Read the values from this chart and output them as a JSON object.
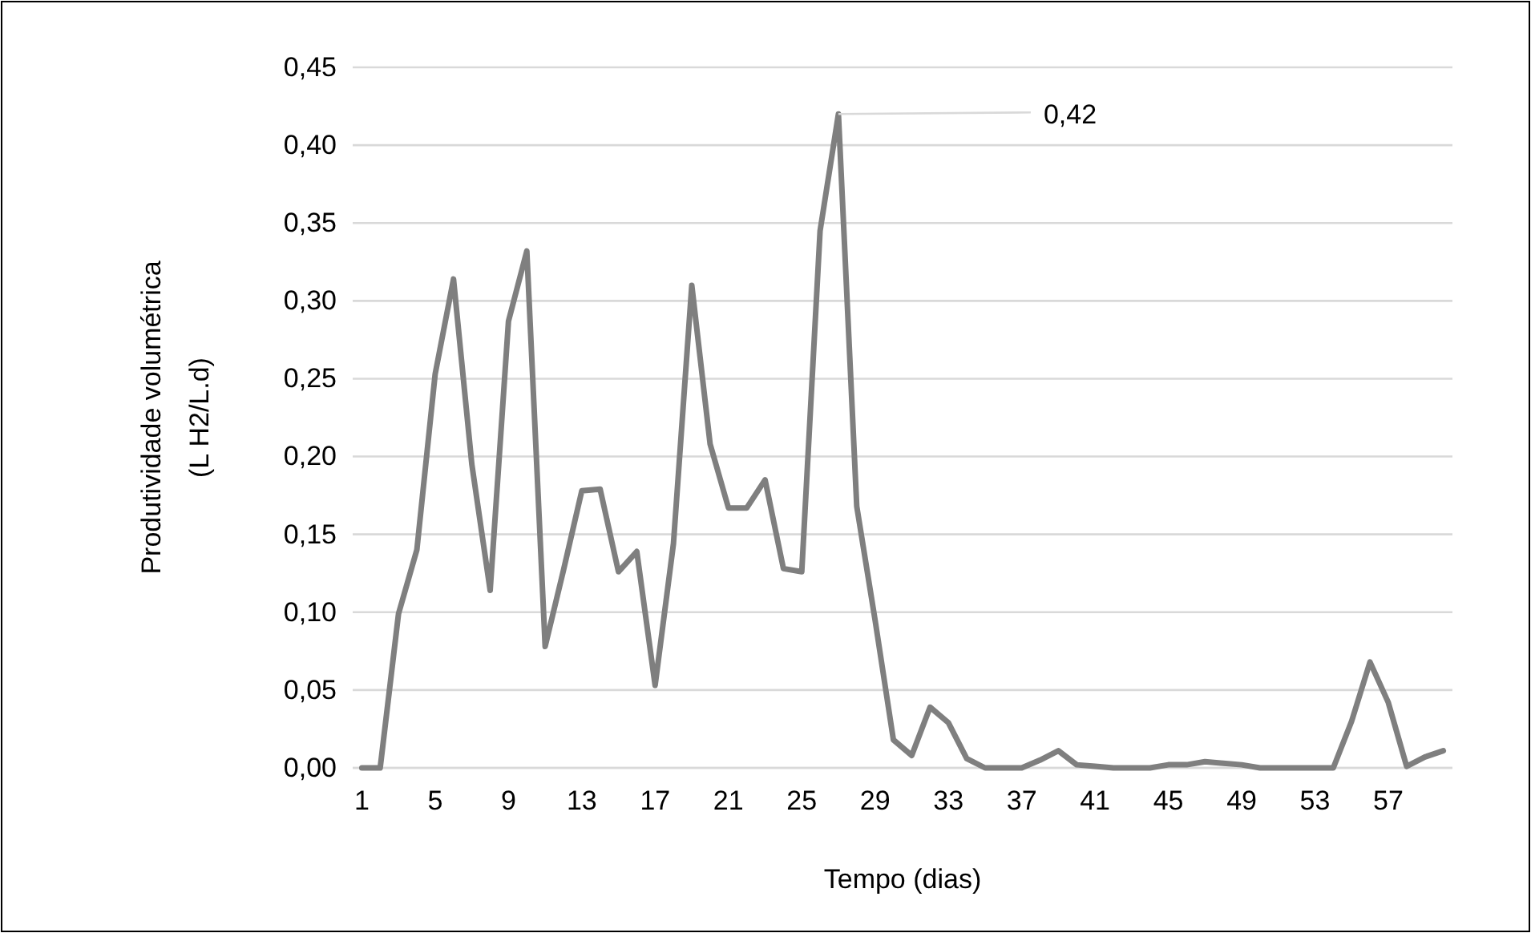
{
  "chart_data": {
    "type": "line",
    "xlabel": "Tempo (dias)",
    "ylabel": "Produtividade volumétrica\n(L H2/L.d)",
    "categories": [
      "1",
      null,
      null,
      null,
      "5",
      null,
      null,
      null,
      "9",
      null,
      null,
      null,
      "13",
      null,
      null,
      null,
      "17",
      null,
      null,
      null,
      "21",
      null,
      null,
      null,
      "25",
      null,
      null,
      null,
      "29",
      null,
      null,
      null,
      "33",
      null,
      null,
      null,
      "37",
      null,
      null,
      null,
      "41",
      null,
      null,
      null,
      "45",
      null,
      null,
      null,
      "49",
      null,
      null,
      null,
      "53",
      null,
      null,
      null,
      "57",
      null,
      null,
      null
    ],
    "series": [
      {
        "color": "#7f7f7f",
        "values": [
          0,
          0,
          0.099,
          0.14,
          0.253,
          0.314,
          0.195,
          0.114,
          0.287,
          0.332,
          0.078,
          0.127,
          0.178,
          0.179,
          0.126,
          0.139,
          0.053,
          0.144,
          0.31,
          0.208,
          0.167,
          0.167,
          0.185,
          0.128,
          0.126,
          0.345,
          0.42,
          0.168,
          0.095,
          0.018,
          0.008,
          0.039,
          0.029,
          0.006,
          0,
          0,
          0,
          0.005,
          0.011,
          0.002,
          0.001,
          0,
          0,
          0,
          0.002,
          0.002,
          0.004,
          0.003,
          0.002,
          0,
          0,
          0,
          0,
          0,
          0.03,
          0.068,
          0.042,
          0.001,
          0.007,
          0.011
        ],
        "value_labels": [
          null,
          null,
          null,
          null,
          null,
          null,
          null,
          null,
          null,
          null,
          null,
          null,
          null,
          null,
          null,
          null,
          null,
          null,
          null,
          null,
          null,
          null,
          null,
          null,
          null,
          null,
          "0,42",
          null,
          null,
          null,
          null,
          null,
          null,
          null,
          null,
          null,
          null,
          null,
          null,
          null,
          null,
          null,
          null,
          null,
          null,
          null,
          null,
          null,
          null,
          null,
          null,
          null,
          null,
          null,
          null,
          null,
          null,
          null,
          null,
          null
        ]
      }
    ],
    "ylim": [
      0,
      0.45
    ],
    "yticks": [
      {
        "value": 0,
        "label": "0,00"
      },
      {
        "value": 0.05,
        "label": "0,05"
      },
      {
        "value": 0.1,
        "label": "0,10"
      },
      {
        "value": 0.15,
        "label": "0,15"
      },
      {
        "value": 0.2,
        "label": "0,20"
      },
      {
        "value": 0.25,
        "label": "0,25"
      },
      {
        "value": 0.3,
        "label": "0,30"
      },
      {
        "value": 0.35,
        "label": "0,35"
      },
      {
        "value": 0.4,
        "label": "0,40"
      },
      {
        "value": 0.45,
        "label": "0,45"
      }
    ],
    "grid": "y",
    "marker": "none",
    "line_style": "solid"
  }
}
